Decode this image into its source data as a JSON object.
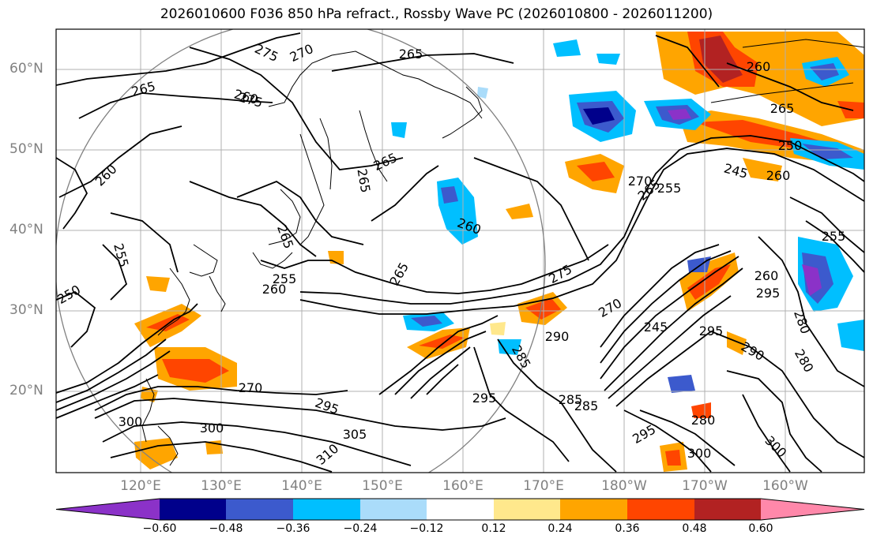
{
  "title": "2026010600 F036 850 hPa refract., Rossby Wave PC (2026010800 - 2026011200)",
  "axes": {
    "lat_labels": [
      "60°N",
      "50°N",
      "40°N",
      "30°N",
      "20°N"
    ],
    "lon_labels": [
      "120°E",
      "130°E",
      "140°E",
      "150°E",
      "160°E",
      "170°E",
      "180°W",
      "170°W",
      "160°W"
    ]
  },
  "colorbar": {
    "ticks": [
      "−0.60",
      "−0.48",
      "−0.36",
      "−0.24",
      "−0.12",
      "0.12",
      "0.24",
      "0.36",
      "0.48",
      "0.60"
    ],
    "colors": [
      "#8b32c8",
      "#00008b",
      "#3c5acd",
      "#00bfff",
      "#aadcfa",
      "#ffffff",
      "#ffe88c",
      "#ffa500",
      "#ff4500",
      "#b22222",
      "#ff88aa"
    ]
  },
  "contour_labels": [
    "275",
    "270",
    "265",
    "265",
    "275",
    "260",
    "265",
    "265",
    "260",
    "255",
    "250",
    "265",
    "255",
    "260",
    "265",
    "260",
    "275",
    "270",
    "290",
    "285",
    "295",
    "285",
    "295",
    "305",
    "310",
    "300",
    "300",
    "270",
    "265",
    "255",
    "245",
    "260",
    "250",
    "260",
    "265",
    "270",
    "280",
    "290",
    "295",
    "280",
    "285",
    "295",
    "300",
    "300",
    "280",
    "295",
    "245",
    "255",
    "260"
  ]
}
